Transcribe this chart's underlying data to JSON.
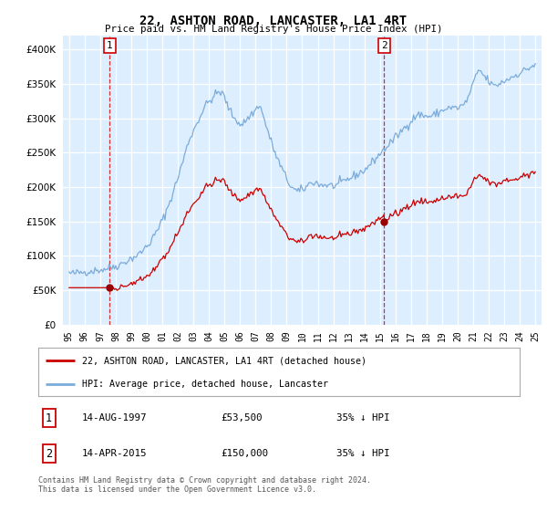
{
  "title": "22, ASHTON ROAD, LANCASTER, LA1 4RT",
  "subtitle": "Price paid vs. HM Land Registry's House Price Index (HPI)",
  "legend_line1": "22, ASHTON ROAD, LANCASTER, LA1 4RT (detached house)",
  "legend_line2": "HPI: Average price, detached house, Lancaster",
  "annotation1_date": "14-AUG-1997",
  "annotation1_price": "£53,500",
  "annotation1_note": "35% ↓ HPI",
  "annotation2_date": "14-APR-2015",
  "annotation2_price": "£150,000",
  "annotation2_note": "35% ↓ HPI",
  "footnote": "Contains HM Land Registry data © Crown copyright and database right 2024.\nThis data is licensed under the Open Government Licence v3.0.",
  "sale1_year": 1997.62,
  "sale1_price": 53500,
  "sale2_year": 2015.28,
  "sale2_price": 150000,
  "hpi_line_color": "#7aabdb",
  "price_line_color": "#cc0000",
  "dot_color": "#990000",
  "dashed_color": "#cc0000",
  "plot_bg_color": "#ddeeff",
  "ylim": [
    0,
    420000
  ],
  "xlim_start": 1994.6,
  "xlim_end": 2025.4,
  "year_ticks": [
    1995,
    1996,
    1997,
    1998,
    1999,
    2000,
    2001,
    2002,
    2003,
    2004,
    2005,
    2006,
    2007,
    2008,
    2009,
    2010,
    2011,
    2012,
    2013,
    2014,
    2015,
    2016,
    2017,
    2018,
    2019,
    2020,
    2021,
    2022,
    2023,
    2024,
    2025
  ]
}
